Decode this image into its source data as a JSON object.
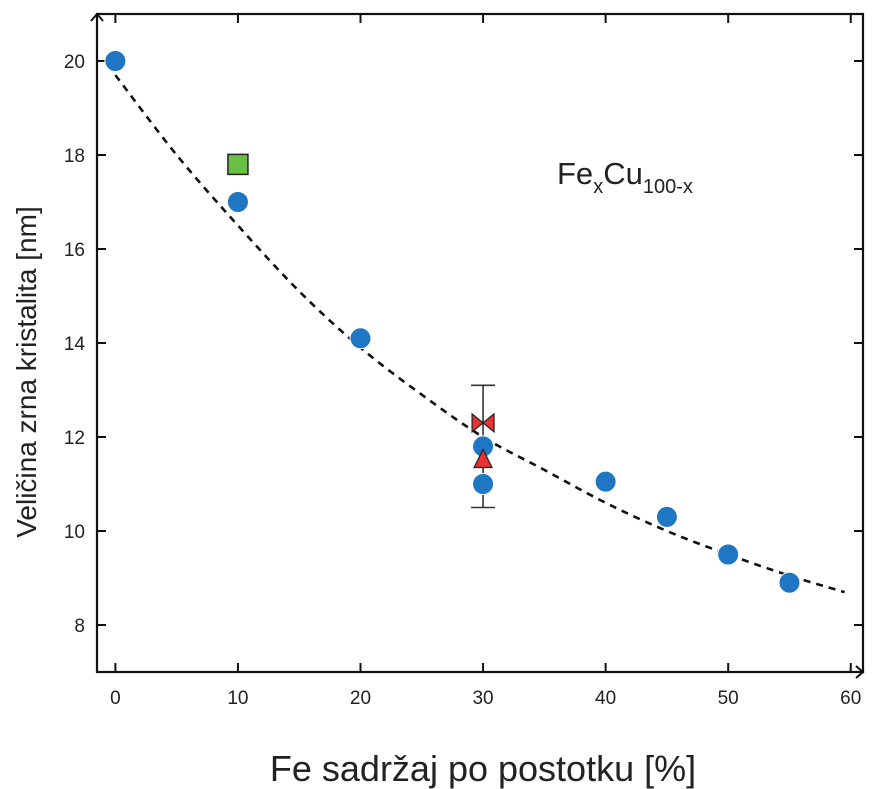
{
  "chart_data": {
    "type": "scatter",
    "xlabel": "Fe sadržaj po postotku [%]",
    "ylabel": "Veličina zrna kristalita [nm]",
    "xlim": [
      -1.5,
      61
    ],
    "ylim": [
      7.0,
      21.0
    ],
    "x_ticks": [
      0,
      10,
      20,
      30,
      40,
      50,
      60
    ],
    "y_ticks": [
      8,
      10,
      12,
      14,
      16,
      18,
      20
    ],
    "grid": false,
    "annotation": {
      "base": "Fe",
      "sub1": "x",
      "mid": "Cu",
      "sub2": "100-x"
    },
    "series": [
      {
        "marker": "circle",
        "color": "#1f77c4",
        "points": [
          {
            "x": 0,
            "y": 20.0
          },
          {
            "x": 10,
            "y": 17.0
          },
          {
            "x": 20,
            "y": 14.1
          },
          {
            "x": 30,
            "y": 11.8
          },
          {
            "x": 30,
            "y": 11.0
          },
          {
            "x": 40,
            "y": 11.05
          },
          {
            "x": 45,
            "y": 10.3
          },
          {
            "x": 50,
            "y": 9.5
          },
          {
            "x": 55,
            "y": 8.9
          }
        ]
      },
      {
        "marker": "square",
        "color": "#6abf45",
        "points": [
          {
            "x": 10,
            "y": 17.8
          }
        ]
      },
      {
        "marker": "triangle",
        "color": "#e63232",
        "points": [
          {
            "x": 30,
            "y": 11.5
          }
        ]
      },
      {
        "marker": "bowtie",
        "color": "#e63232",
        "points": [
          {
            "x": 30,
            "y": 12.3
          }
        ],
        "error": {
          "low": 10.5,
          "high": 13.1
        }
      }
    ],
    "fit_curve": {
      "style": "dashed",
      "color": "#111111",
      "x": [
        0,
        5,
        10,
        15,
        20,
        25,
        30,
        35,
        40,
        45,
        50,
        55,
        59.5
      ],
      "y": [
        19.7,
        18.0,
        16.5,
        15.1,
        13.9,
        12.9,
        12.0,
        11.3,
        10.6,
        10.0,
        9.5,
        9.05,
        8.7
      ]
    }
  }
}
